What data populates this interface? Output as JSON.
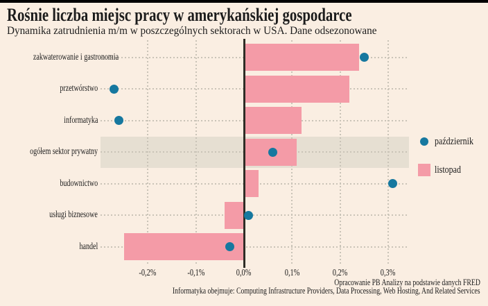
{
  "colors": {
    "background": "#FAEEE2",
    "top_bar": "#000000",
    "zero_line": "#2F2D26",
    "grid": "#C9C3B7",
    "text": "#1C1C1C",
    "highlight_band": "#E6DFD2",
    "october_blue": "#16789F",
    "november_pink": "#F49BA7"
  },
  "chart_data": {
    "type": "bar",
    "orientation": "horizontal",
    "title": "Rośnie liczba miejsc pracy w amerykańskiej gospodarce",
    "subtitle": "Dynamika zatrudnienia m/m w poszczególnych sektorach w USA. Dane odsezonowane",
    "categories": [
      "zakwaterowanie i gastronomia",
      "przetwórstwo",
      "informatyka",
      "ogółem sektor prywatny",
      "budownictwo",
      "usługi biznesowe",
      "handel"
    ],
    "series": [
      {
        "name": "październik",
        "slug": "pazdziernik",
        "marker": "dot",
        "color": "#16789F",
        "values": [
          0.25,
          -0.27,
          -0.26,
          0.06,
          0.31,
          0.01,
          -0.03
        ]
      },
      {
        "name": "listopad",
        "slug": "listopad",
        "marker": "bar",
        "color": "#F49BA7",
        "values": [
          0.24,
          0.22,
          0.12,
          0.11,
          0.03,
          -0.04,
          -0.25
        ]
      }
    ],
    "unit": "%",
    "x_ticks": [
      {
        "label": "-0,2%",
        "value": -0.2
      },
      {
        "label": "-0,1%",
        "value": -0.1
      },
      {
        "label": "0,0%",
        "value": 0.0
      },
      {
        "label": "0,1%",
        "value": 0.1
      },
      {
        "label": "0,2%",
        "value": 0.2
      },
      {
        "label": "0,3%",
        "value": 0.3
      }
    ],
    "xlim": [
      -0.3,
      0.34
    ],
    "grid": "dotted",
    "highlight_index": 3,
    "highlight_color": "#E6DFD2",
    "legend_position": "right"
  },
  "footer": {
    "source": "Opracowanie PB Analizy na podstawie danych FRED",
    "note": "Informatyka obejmuje: Computing Infrastructure Providers, Data Processing, Web Hosting, And Related Services"
  }
}
